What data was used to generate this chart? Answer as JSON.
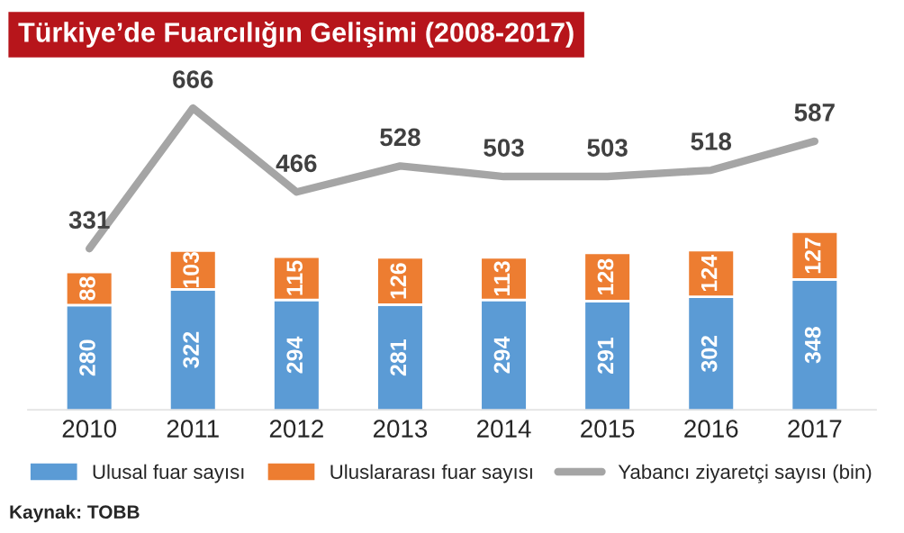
{
  "chart_data": {
    "type": "bar",
    "title": "Türkiye’de Fuarcılığın Gelişimi (2008-2017)",
    "categories": [
      "2010",
      "2011",
      "2012",
      "2013",
      "2014",
      "2015",
      "2016",
      "2017"
    ],
    "stacked": true,
    "data_labels": true,
    "legend": "bottom",
    "grid": false,
    "tick_labels": "x",
    "series": [
      {
        "name": "Ulusal fuar sayısı",
        "color": "#5b9bd5",
        "values": [
          280,
          322,
          294,
          281,
          294,
          291,
          302,
          348
        ]
      },
      {
        "name": "Uluslararası fuar sayısı",
        "color": "#ed7d31",
        "values": [
          88,
          103,
          115,
          126,
          113,
          128,
          124,
          127
        ]
      },
      {
        "name": "Yabancı ziyaretçi sayısı (bin)",
        "type": "line",
        "axis": "y2",
        "color": "#a5a5a5",
        "values": [
          331,
          666,
          466,
          528,
          503,
          503,
          518,
          587
        ]
      }
    ],
    "annotations": [
      "Kaynak: TOBB"
    ]
  }
}
